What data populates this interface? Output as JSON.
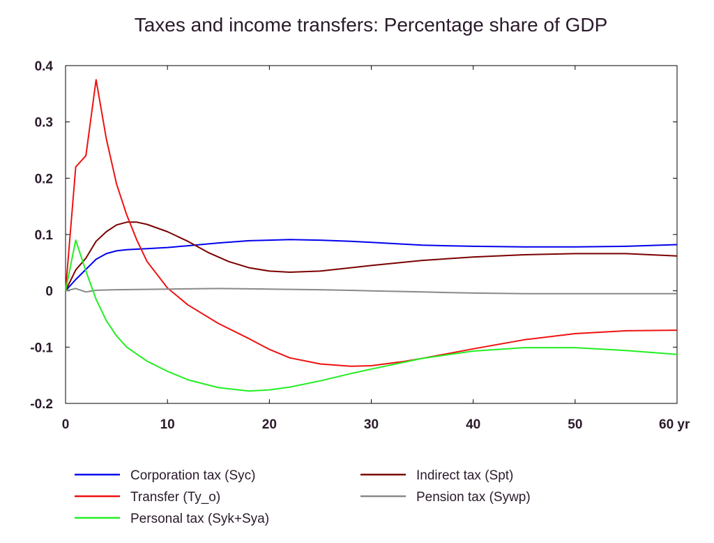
{
  "chart_data": {
    "type": "line",
    "title": "Taxes and income transfers: Percentage share of GDP",
    "xlabel": "",
    "ylabel": "",
    "xlim": [
      0,
      60
    ],
    "ylim": [
      -0.2,
      0.4
    ],
    "x_ticks": [
      {
        "value": 0,
        "label": "0"
      },
      {
        "value": 10,
        "label": "10"
      },
      {
        "value": 20,
        "label": "20"
      },
      {
        "value": 30,
        "label": "30"
      },
      {
        "value": 40,
        "label": "40"
      },
      {
        "value": 50,
        "label": "50"
      },
      {
        "value": 60,
        "label": "60 yr"
      }
    ],
    "y_ticks": [
      {
        "value": -0.2,
        "label": "-0.2"
      },
      {
        "value": -0.1,
        "label": "-0.1"
      },
      {
        "value": 0,
        "label": "0"
      },
      {
        "value": 0.1,
        "label": "0.1"
      },
      {
        "value": 0.2,
        "label": "0.2"
      },
      {
        "value": 0.3,
        "label": "0.3"
      },
      {
        "value": 0.4,
        "label": "0.4"
      }
    ],
    "grid": false,
    "legend_position": "bottom",
    "series": [
      {
        "name": "Corporation tax (Syc)",
        "color": "#0000ee",
        "points": [
          [
            0,
            0
          ],
          [
            1,
            0.02
          ],
          [
            2,
            0.038
          ],
          [
            3,
            0.056
          ],
          [
            4,
            0.066
          ],
          [
            5,
            0.071
          ],
          [
            6,
            0.073
          ],
          [
            8,
            0.075
          ],
          [
            10,
            0.077
          ],
          [
            12,
            0.08
          ],
          [
            15,
            0.085
          ],
          [
            18,
            0.089
          ],
          [
            20,
            0.09
          ],
          [
            22,
            0.091
          ],
          [
            25,
            0.09
          ],
          [
            28,
            0.088
          ],
          [
            30,
            0.086
          ],
          [
            35,
            0.081
          ],
          [
            40,
            0.079
          ],
          [
            45,
            0.078
          ],
          [
            50,
            0.078
          ],
          [
            55,
            0.079
          ],
          [
            60,
            0.082
          ]
        ]
      },
      {
        "name": "Indirect tax (Spt)",
        "color": "#7a0000",
        "points": [
          [
            0,
            0
          ],
          [
            1,
            0.037
          ],
          [
            2,
            0.058
          ],
          [
            3,
            0.088
          ],
          [
            4,
            0.105
          ],
          [
            5,
            0.117
          ],
          [
            6,
            0.122
          ],
          [
            7,
            0.122
          ],
          [
            8,
            0.118
          ],
          [
            10,
            0.105
          ],
          [
            12,
            0.088
          ],
          [
            14,
            0.068
          ],
          [
            16,
            0.052
          ],
          [
            18,
            0.041
          ],
          [
            20,
            0.035
          ],
          [
            22,
            0.033
          ],
          [
            25,
            0.035
          ],
          [
            30,
            0.045
          ],
          [
            35,
            0.054
          ],
          [
            40,
            0.06
          ],
          [
            45,
            0.064
          ],
          [
            50,
            0.066
          ],
          [
            55,
            0.066
          ],
          [
            60,
            0.062
          ]
        ]
      },
      {
        "name": "Transfer (Ty_o)",
        "color": "#ee1111",
        "points": [
          [
            0,
            0
          ],
          [
            1,
            0.22
          ],
          [
            2,
            0.24
          ],
          [
            3,
            0.375
          ],
          [
            4,
            0.27
          ],
          [
            5,
            0.19
          ],
          [
            6,
            0.135
          ],
          [
            7,
            0.09
          ],
          [
            8,
            0.052
          ],
          [
            10,
            0.005
          ],
          [
            12,
            -0.025
          ],
          [
            15,
            -0.058
          ],
          [
            18,
            -0.085
          ],
          [
            20,
            -0.104
          ],
          [
            22,
            -0.119
          ],
          [
            25,
            -0.13
          ],
          [
            28,
            -0.134
          ],
          [
            30,
            -0.133
          ],
          [
            33,
            -0.126
          ],
          [
            35,
            -0.12
          ],
          [
            40,
            -0.103
          ],
          [
            45,
            -0.087
          ],
          [
            50,
            -0.076
          ],
          [
            55,
            -0.071
          ],
          [
            60,
            -0.07
          ]
        ]
      },
      {
        "name": "Pension tax (Sywp)",
        "color": "#888888",
        "points": [
          [
            0,
            0
          ],
          [
            1,
            0.004
          ],
          [
            2,
            -0.002
          ],
          [
            3,
            0.001
          ],
          [
            5,
            0.002
          ],
          [
            10,
            0.003
          ],
          [
            15,
            0.004
          ],
          [
            20,
            0.003
          ],
          [
            25,
            0.002
          ],
          [
            30,
            0.0
          ],
          [
            35,
            -0.002
          ],
          [
            40,
            -0.004
          ],
          [
            45,
            -0.005
          ],
          [
            50,
            -0.005
          ],
          [
            55,
            -0.005
          ],
          [
            60,
            -0.005
          ]
        ]
      },
      {
        "name": "Personal tax (Syk+Sya)",
        "color": "#22ee22",
        "points": [
          [
            0,
            0
          ],
          [
            1,
            0.09
          ],
          [
            2,
            0.035
          ],
          [
            3,
            -0.015
          ],
          [
            4,
            -0.053
          ],
          [
            5,
            -0.08
          ],
          [
            6,
            -0.1
          ],
          [
            8,
            -0.125
          ],
          [
            10,
            -0.143
          ],
          [
            12,
            -0.158
          ],
          [
            15,
            -0.172
          ],
          [
            18,
            -0.178
          ],
          [
            20,
            -0.176
          ],
          [
            22,
            -0.171
          ],
          [
            25,
            -0.16
          ],
          [
            28,
            -0.147
          ],
          [
            30,
            -0.139
          ],
          [
            35,
            -0.12
          ],
          [
            40,
            -0.107
          ],
          [
            45,
            -0.101
          ],
          [
            50,
            -0.101
          ],
          [
            55,
            -0.106
          ],
          [
            60,
            -0.113
          ]
        ]
      }
    ]
  }
}
